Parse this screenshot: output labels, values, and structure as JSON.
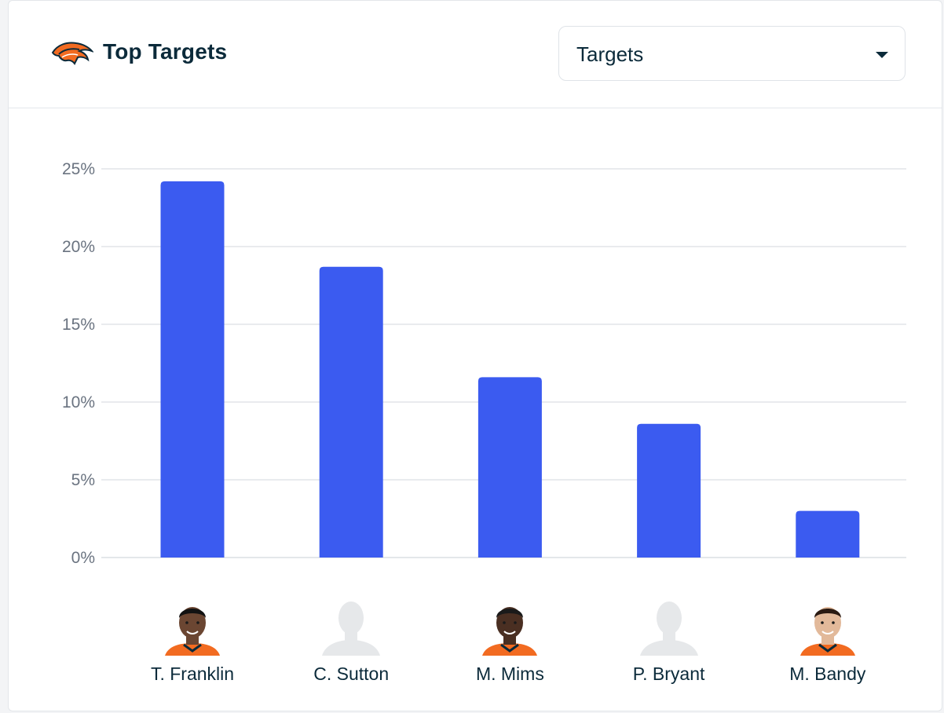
{
  "header": {
    "title": "Top Targets",
    "logo_icon": "broncos-logo-icon"
  },
  "metric_select": {
    "selected": "Targets",
    "icon": "caret-down-icon"
  },
  "colors": {
    "bar": "#3b5bf0",
    "grid": "#dcdfe4",
    "accent_orange": "#f26b21",
    "navy": "#0b2a3a",
    "placeholder": "#e6e8ea"
  },
  "chart_data": {
    "type": "bar",
    "title": "Top Targets",
    "ylabel": "",
    "xlabel": "",
    "ylim": [
      0,
      25
    ],
    "yticks": [
      0,
      5,
      10,
      15,
      20,
      25
    ],
    "ytick_labels": [
      "0%",
      "5%",
      "10%",
      "15%",
      "20%",
      "25%"
    ],
    "categories": [
      "T. Franklin",
      "C. Sutton",
      "M. Mims",
      "P. Bryant",
      "M. Bandy"
    ],
    "values": [
      24.2,
      18.7,
      11.6,
      8.6,
      3.0
    ],
    "grid": true,
    "legend": "none"
  },
  "players": [
    {
      "name": "T. Franklin",
      "avatar": "photo"
    },
    {
      "name": "C. Sutton",
      "avatar": "placeholder"
    },
    {
      "name": "M. Mims",
      "avatar": "photo"
    },
    {
      "name": "P. Bryant",
      "avatar": "placeholder"
    },
    {
      "name": "M. Bandy",
      "avatar": "photo"
    }
  ]
}
